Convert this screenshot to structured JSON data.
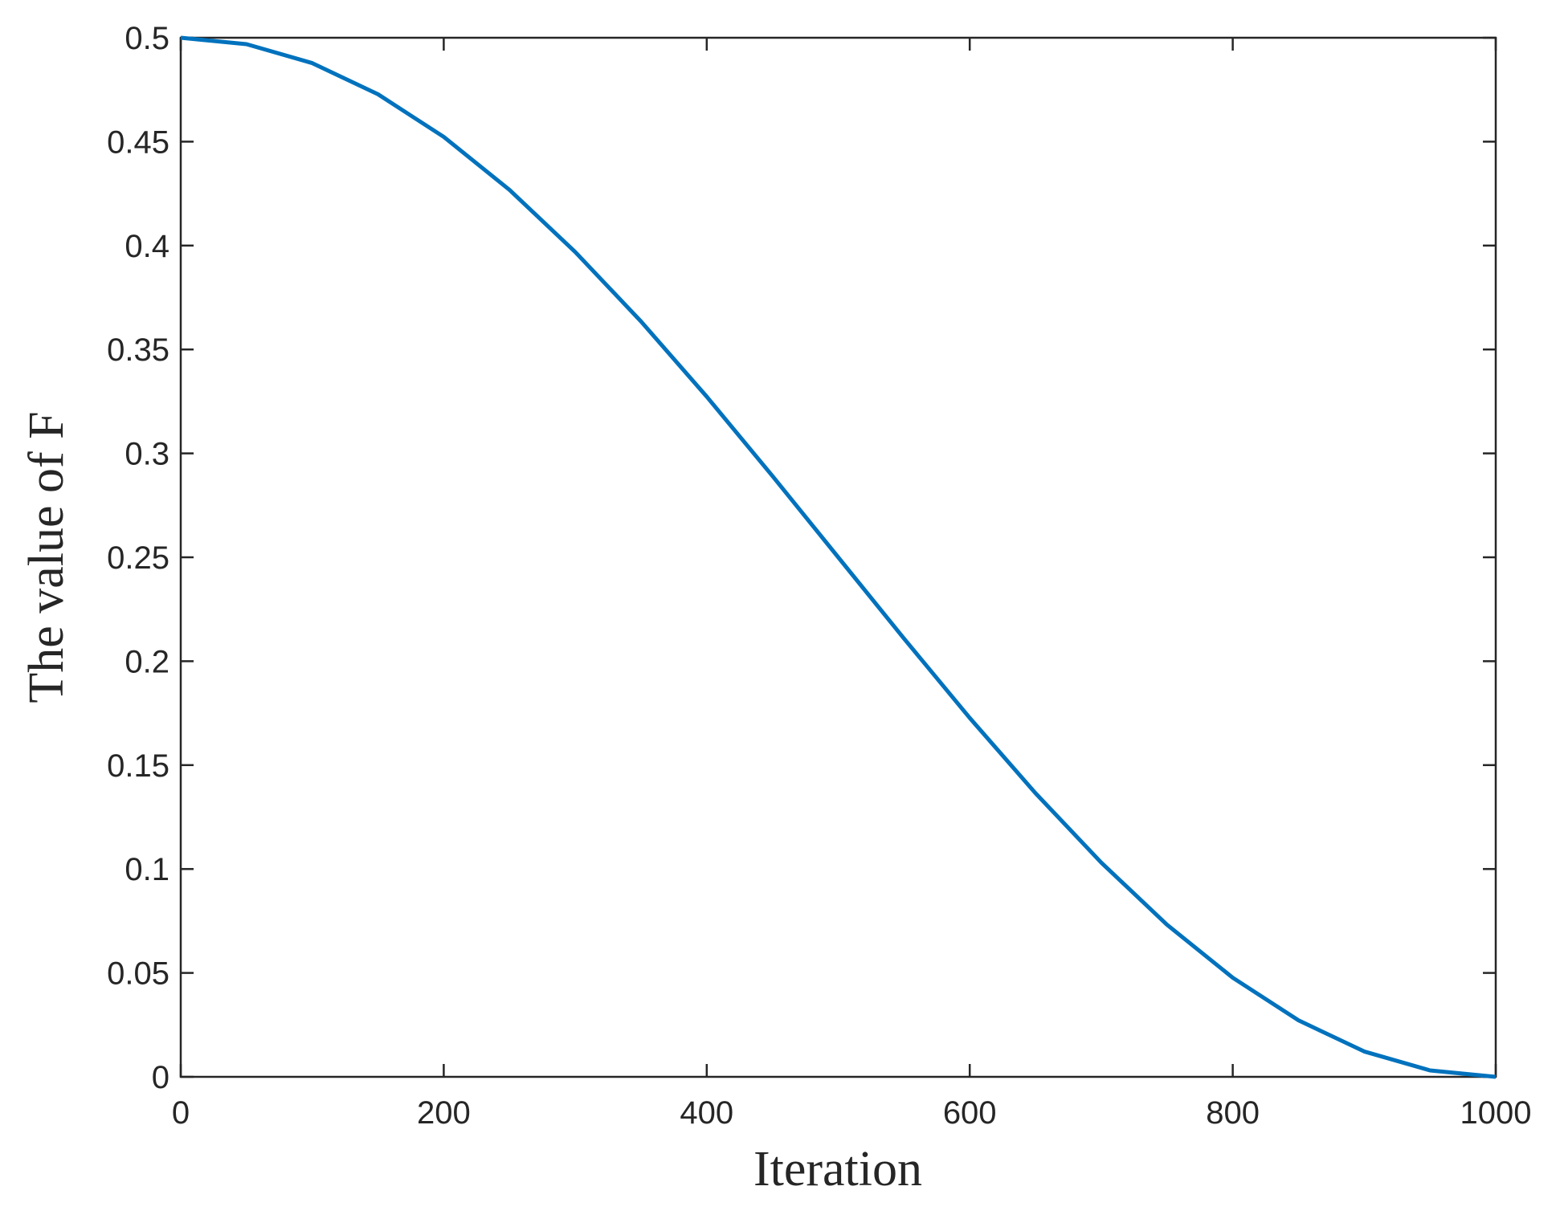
{
  "chart_data": {
    "type": "line",
    "xlabel": "Iteration",
    "ylabel": "The value of F",
    "x": [
      0,
      50,
      100,
      150,
      200,
      250,
      300,
      350,
      400,
      450,
      500,
      550,
      600,
      650,
      700,
      750,
      800,
      850,
      900,
      950,
      1000
    ],
    "series": [
      {
        "color": "#0072bd",
        "values": [
          0.5,
          0.4969,
          0.4878,
          0.4728,
          0.4523,
          0.4268,
          0.3969,
          0.3635,
          0.3273,
          0.2891,
          0.25,
          0.2109,
          0.1727,
          0.1365,
          0.1031,
          0.0732,
          0.0477,
          0.0272,
          0.0122,
          0.0031,
          0
        ]
      }
    ],
    "xlim": [
      0,
      1000
    ],
    "xticks": [
      0,
      200,
      400,
      600,
      800,
      1000
    ],
    "ylim": [
      0,
      0.5
    ],
    "yticks": [
      0,
      0.05,
      0.1,
      0.15,
      0.2,
      0.25,
      0.3,
      0.35,
      0.4,
      0.45,
      0.5
    ],
    "grid": false
  }
}
